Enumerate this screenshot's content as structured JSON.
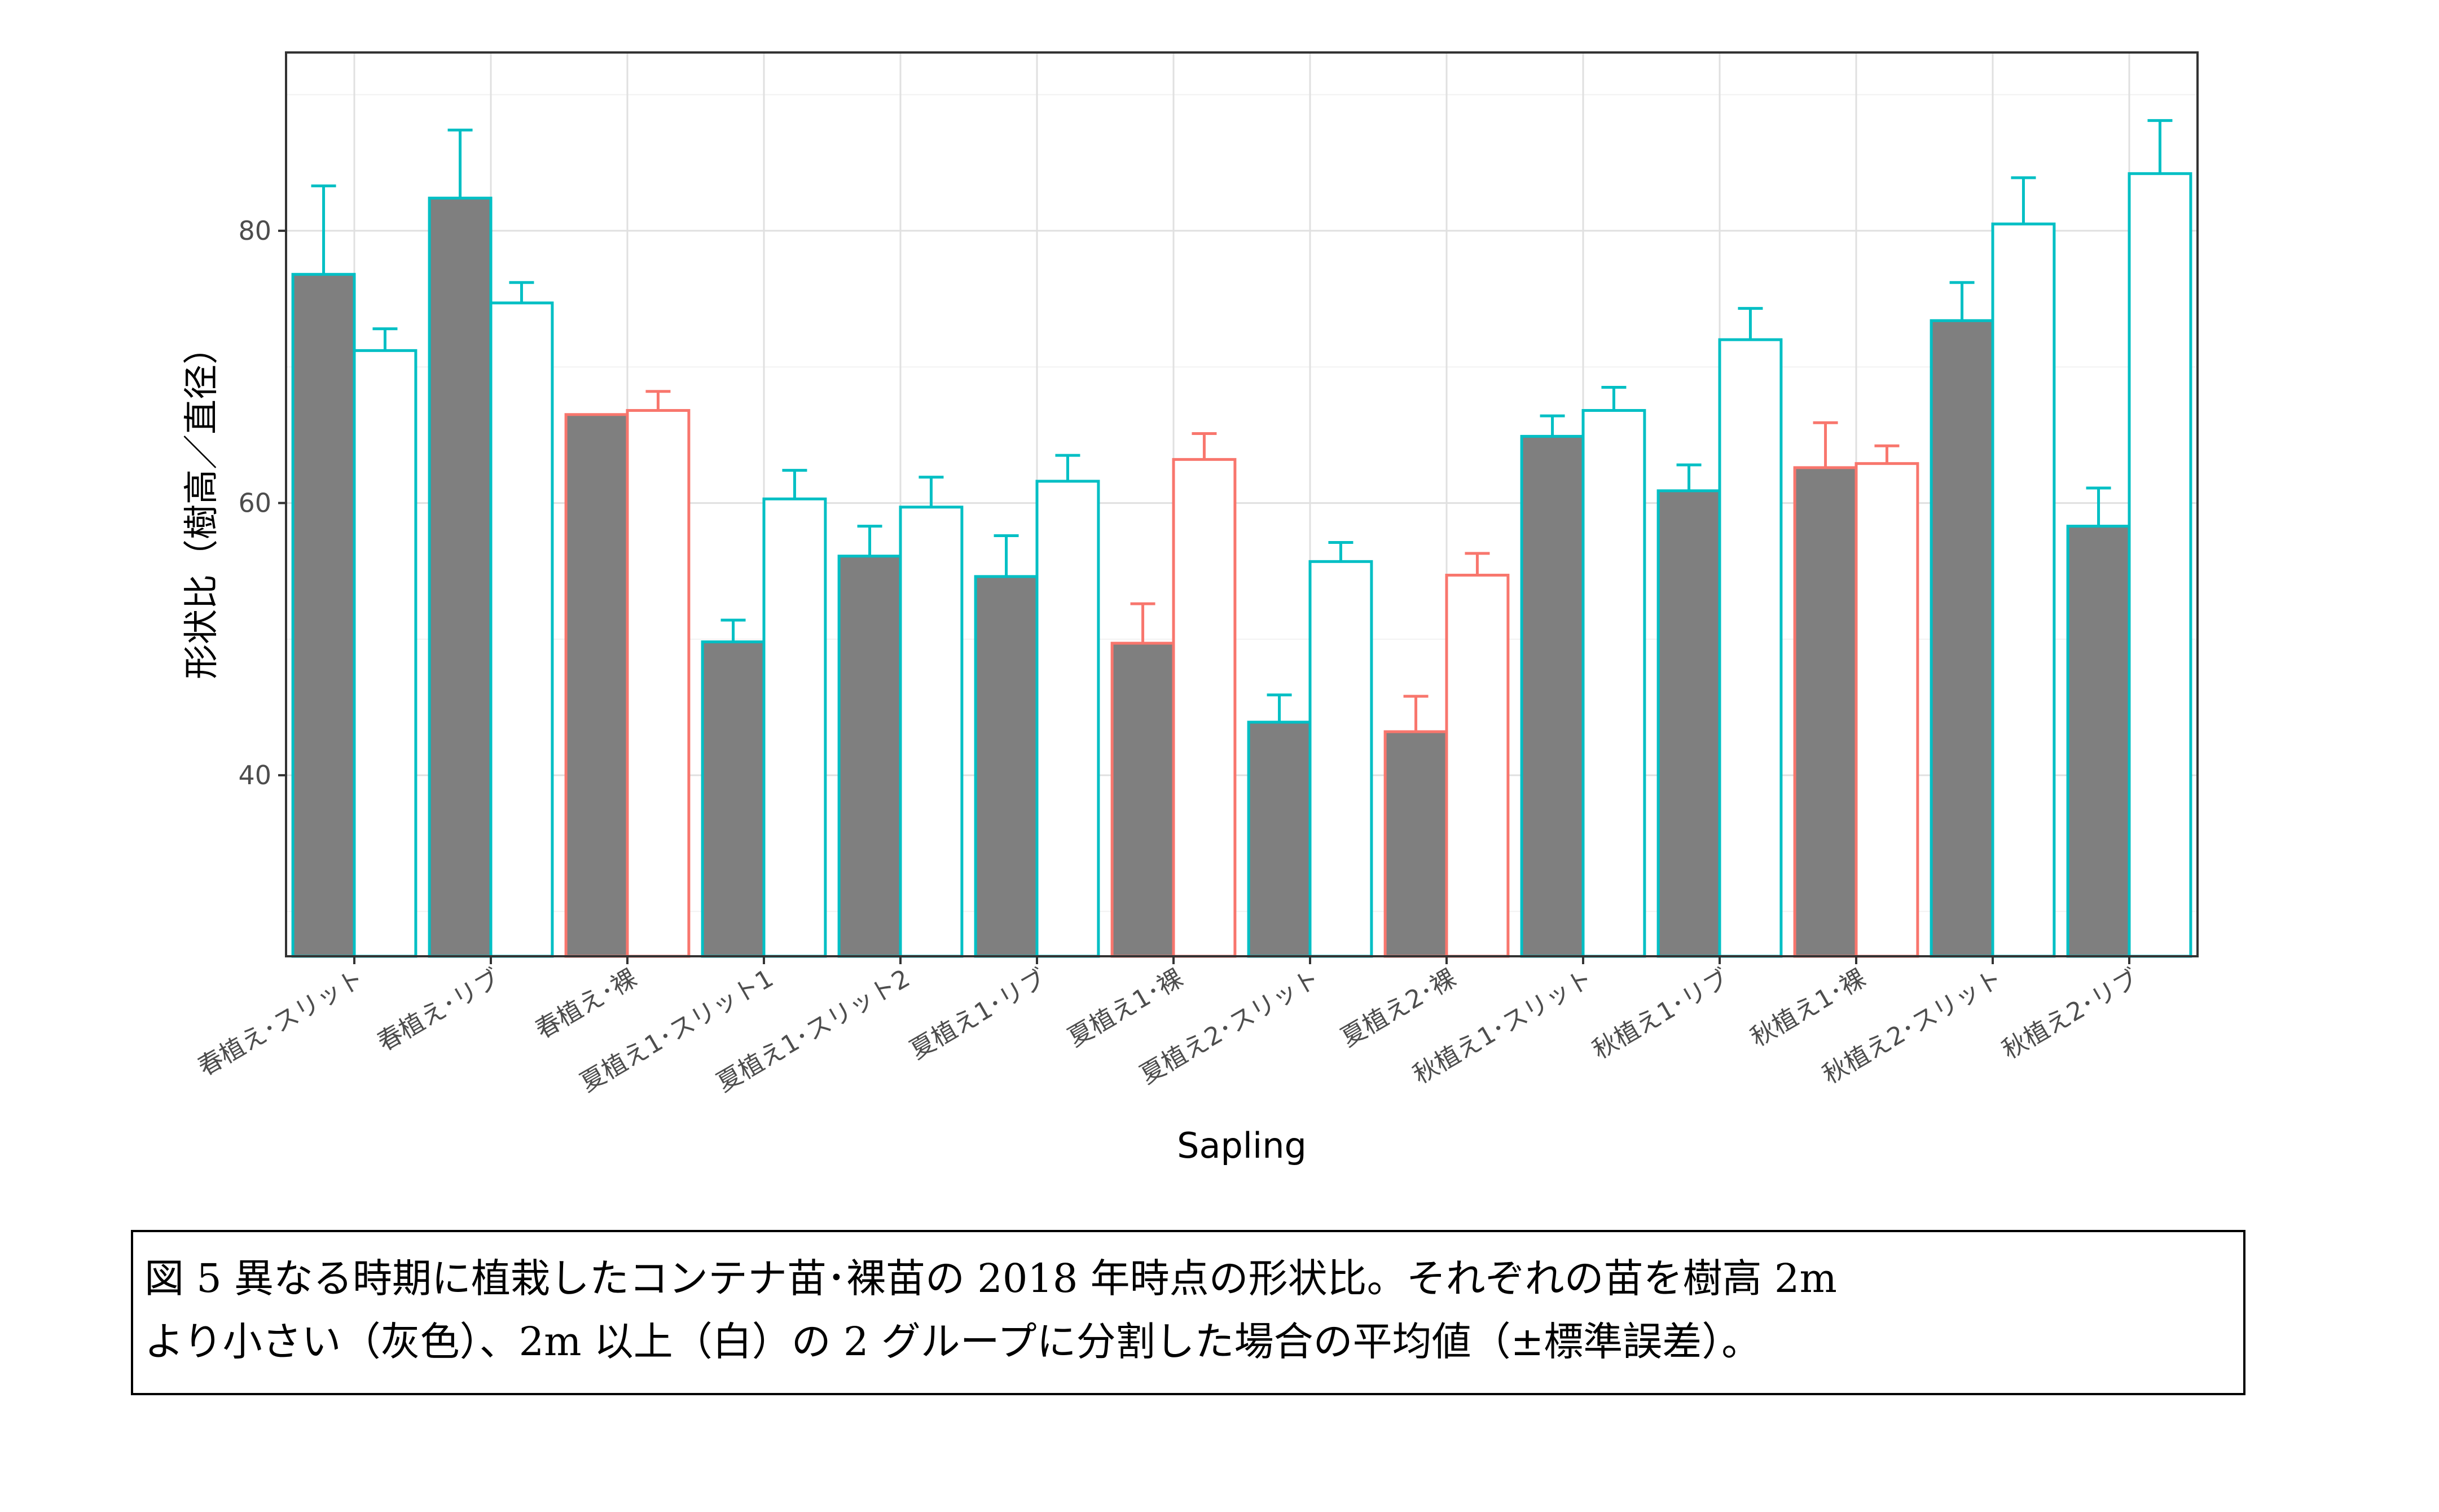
{
  "chart_data": {
    "type": "bar",
    "xlabel": "Sapling",
    "ylabel": "形状比（樹高／直径）",
    "ylim": [
      26.7,
      93.1
    ],
    "yticks": [
      40,
      60,
      80
    ],
    "grid": true,
    "legend": "none",
    "categories": [
      "春植え･スリット",
      "春植え･リブ",
      "春植え･裸",
      "夏植え1･スリット1",
      "夏植え1･スリット2",
      "夏植え1･リブ",
      "夏植え1･裸",
      "夏植え2･スリット",
      "夏植え2･裸",
      "秋植え1･スリット",
      "秋植え1･リブ",
      "秋植え1･裸",
      "秋植え2･スリット",
      "秋植え2･リブ"
    ],
    "outline_color": [
      "#00bfc4",
      "#00bfc4",
      "#f8766d",
      "#00bfc4",
      "#00bfc4",
      "#00bfc4",
      "#f8766d",
      "#00bfc4",
      "#f8766d",
      "#00bfc4",
      "#00bfc4",
      "#f8766d",
      "#00bfc4",
      "#00bfc4"
    ],
    "series": [
      {
        "fill": "#7f7f7f",
        "values": [
          76.8,
          82.4,
          66.5,
          49.8,
          56.1,
          54.6,
          49.7,
          43.9,
          43.2,
          64.9,
          60.9,
          62.6,
          73.4,
          58.3
        ],
        "errors": [
          6.5,
          5.0,
          0,
          1.6,
          2.2,
          3.0,
          2.9,
          2.0,
          2.6,
          1.5,
          1.9,
          3.3,
          2.8,
          2.8
        ]
      },
      {
        "fill": "#ffffff",
        "values": [
          71.2,
          74.7,
          66.8,
          60.3,
          59.7,
          61.6,
          63.2,
          55.7,
          54.7,
          66.8,
          72.0,
          62.9,
          80.5,
          84.2
        ],
        "errors": [
          1.6,
          1.5,
          1.4,
          2.1,
          2.2,
          1.9,
          1.9,
          1.4,
          1.6,
          1.7,
          2.3,
          1.3,
          3.4,
          3.9
        ]
      }
    ]
  },
  "caption": {
    "line1": "図 5  異なる時期に植栽したコンテナ苗･裸苗の 2018 年時点の形状比。それぞれの苗を樹高 2m",
    "line2": "より小さい（灰色）、2m 以上（白）の 2 グループに分割した場合の平均値（±標準誤差）。"
  }
}
